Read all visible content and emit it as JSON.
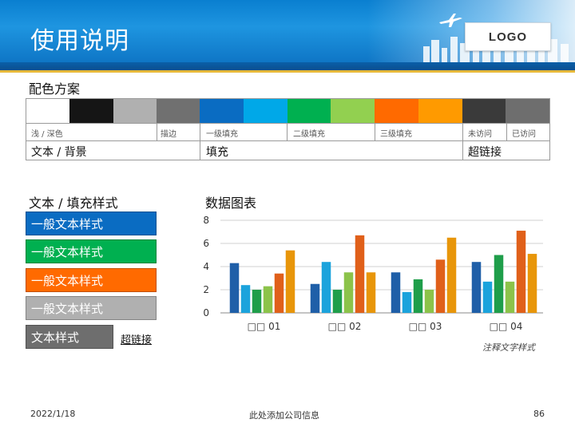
{
  "header": {
    "title": "使用说明",
    "logo": "LOGO"
  },
  "scheme": {
    "heading": "配色方案",
    "swatch_colors": [
      "#ffffff",
      "#151515",
      "#b0b0b0",
      "#707070",
      "#0a6cc2",
      "#00a8e8",
      "#00b050",
      "#92d050",
      "#ff6a00",
      "#ff9a00",
      "#3a3a3a",
      "#6e6e6e"
    ],
    "labels": {
      "light_dark": "浅 / 深色",
      "outline": "描边",
      "fill1": "一级填充",
      "fill2": "二级填充",
      "fill3": "三级填充",
      "unvisited": "未访问",
      "visited": "已访问"
    },
    "rows": {
      "text_bg": "文本 / 背景",
      "fill": "填充",
      "hyperlink": "超链接"
    }
  },
  "styles": {
    "heading": "文本 / 填充样式",
    "items": [
      {
        "label": "一般文本样式",
        "color": "#0a6cc2"
      },
      {
        "label": "一般文本样式",
        "color": "#00b050"
      },
      {
        "label": "一般文本样式",
        "color": "#ff6a00"
      },
      {
        "label": "一般文本样式",
        "color": "#b0b0b0"
      },
      {
        "label": "文本样式",
        "color": "#6e6e6e"
      }
    ],
    "link": "超链接"
  },
  "chart_data": {
    "type": "bar",
    "title": "数据图表",
    "categories": [
      "□□ 01",
      "□□ 02",
      "□□ 03",
      "□□ 04"
    ],
    "ylim": [
      0,
      8
    ],
    "yticks": [
      0,
      2,
      4,
      6,
      8
    ],
    "grid": true,
    "colors": [
      "#1f5fa8",
      "#1ba3dc",
      "#1f9e4a",
      "#8cc34a",
      "#e0601a",
      "#e8960a"
    ],
    "series": [
      {
        "values": [
          4.3,
          2.5,
          3.5,
          4.4
        ]
      },
      {
        "values": [
          2.4,
          4.4,
          1.8,
          2.7
        ]
      },
      {
        "values": [
          2.0,
          2.0,
          2.9,
          5.0
        ]
      },
      {
        "values": [
          2.3,
          3.5,
          2.0,
          2.7
        ]
      },
      {
        "values": [
          3.4,
          6.7,
          4.6,
          7.1
        ]
      },
      {
        "values": [
          5.4,
          3.5,
          6.5,
          5.1
        ]
      }
    ]
  },
  "note": "注释文字样式",
  "footer": {
    "date": "2022/1/18",
    "company": "此处添加公司信息",
    "page": "86"
  }
}
